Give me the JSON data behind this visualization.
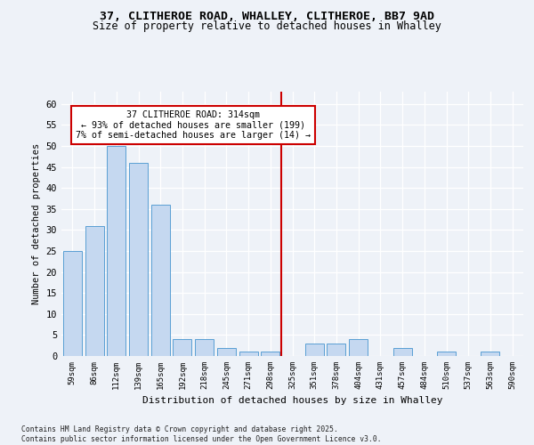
{
  "title1": "37, CLITHEROE ROAD, WHALLEY, CLITHEROE, BB7 9AD",
  "title2": "Size of property relative to detached houses in Whalley",
  "xlabel": "Distribution of detached houses by size in Whalley",
  "ylabel": "Number of detached properties",
  "bar_color": "#c5d8f0",
  "bar_edge_color": "#5a9fd4",
  "vline_color": "#cc0000",
  "annotation_text": "37 CLITHEROE ROAD: 314sqm\n← 93% of detached houses are smaller (199)\n7% of semi-detached houses are larger (14) →",
  "categories": [
    "59sqm",
    "86sqm",
    "112sqm",
    "139sqm",
    "165sqm",
    "192sqm",
    "218sqm",
    "245sqm",
    "271sqm",
    "298sqm",
    "325sqm",
    "351sqm",
    "378sqm",
    "404sqm",
    "431sqm",
    "457sqm",
    "484sqm",
    "510sqm",
    "537sqm",
    "563sqm",
    "590sqm"
  ],
  "values": [
    25,
    31,
    50,
    46,
    36,
    4,
    4,
    2,
    1,
    1,
    0,
    3,
    3,
    4,
    0,
    2,
    0,
    1,
    0,
    1,
    0
  ],
  "ylim": [
    0,
    63
  ],
  "yticks": [
    0,
    5,
    10,
    15,
    20,
    25,
    30,
    35,
    40,
    45,
    50,
    55,
    60
  ],
  "footer": "Contains HM Land Registry data © Crown copyright and database right 2025.\nContains public sector information licensed under the Open Government Licence v3.0.",
  "bg_color": "#eef2f8",
  "grid_color": "#ffffff"
}
